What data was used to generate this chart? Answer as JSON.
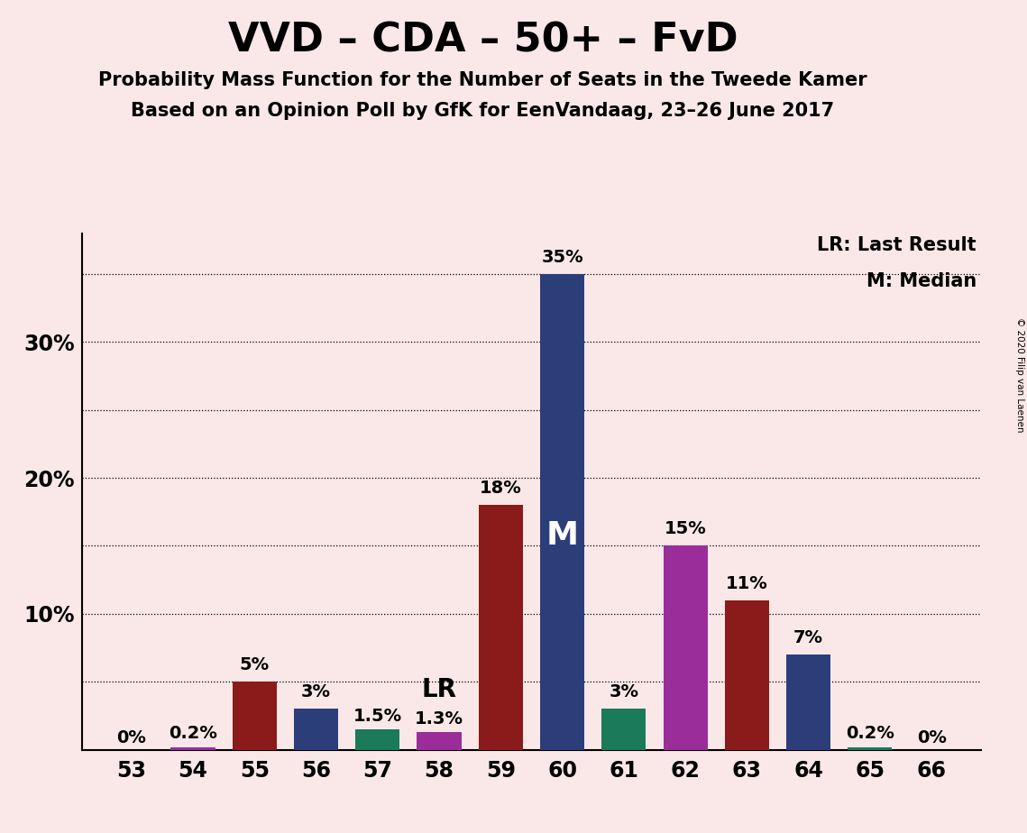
{
  "title": "VVD – CDA – 50+ – FvD",
  "subtitle1": "Probability Mass Function for the Number of Seats in the Tweede Kamer",
  "subtitle2": "Based on an Opinion Poll by GfK for EenVandaag, 23–26 June 2017",
  "copyright": "© 2020 Filip van Laenen",
  "seats": [
    53,
    54,
    55,
    56,
    57,
    58,
    59,
    60,
    61,
    62,
    63,
    64,
    65,
    66
  ],
  "values": [
    0.0,
    0.2,
    5.0,
    3.0,
    1.5,
    1.3,
    18.0,
    35.0,
    3.0,
    15.0,
    11.0,
    7.0,
    0.2,
    0.0
  ],
  "colors": [
    "#9B2D9B",
    "#9B2D9B",
    "#8B1A1A",
    "#2C3E7A",
    "#1A7A5A",
    "#9B2D9B",
    "#8B1A1A",
    "#2C3E7A",
    "#1A7A5A",
    "#9B2D9B",
    "#8B1A1A",
    "#2C3E7A",
    "#1A7A5A",
    "#9B2D9B"
  ],
  "labels": [
    "0%",
    "0.2%",
    "5%",
    "3%",
    "1.5%",
    "1.3%",
    "18%",
    "35%",
    "3%",
    "15%",
    "11%",
    "7%",
    "0.2%",
    "0%"
  ],
  "lr_seat": 58,
  "median_seat": 60,
  "background_color": "#FAE8E8",
  "ylim": [
    0,
    38
  ],
  "yticks": [
    0,
    5,
    10,
    15,
    20,
    25,
    30,
    35
  ],
  "grid_lines": [
    5,
    10,
    15,
    20,
    25,
    30,
    35
  ],
  "legend_text1": "LR: Last Result",
  "legend_text2": "M: Median",
  "title_fontsize": 32,
  "subtitle_fontsize": 15,
  "tick_fontsize": 17,
  "bar_label_fontsize": 14,
  "median_label_fontsize": 26,
  "lr_label_fontsize": 20
}
